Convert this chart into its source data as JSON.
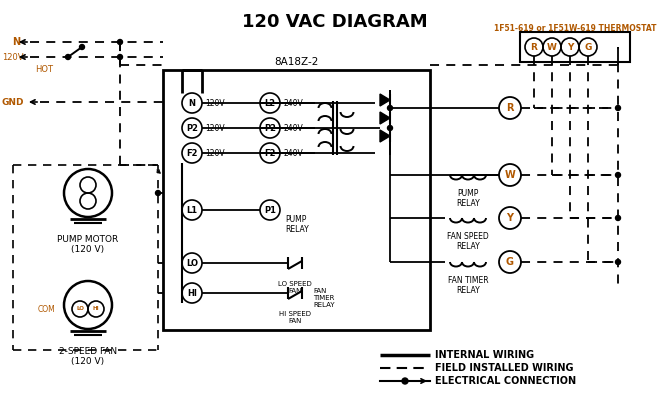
{
  "title": "120 VAC DIAGRAM",
  "bg_color": "#ffffff",
  "orange": "#b05800",
  "black": "#000000",
  "thermostat_label": "1F51-619 or 1F51W-619 THERMOSTAT",
  "thermostat_terminals": [
    "R",
    "W",
    "Y",
    "G"
  ],
  "control_box_label": "8A18Z-2",
  "motor_label": "PUMP MOTOR\n(120 V)",
  "fan_label": "2-SPEED FAN\n(120 V)",
  "legend_items": [
    "INTERNAL WIRING",
    "FIELD INSTALLED WIRING",
    "ELECTRICAL CONNECTION"
  ],
  "figsize": [
    6.7,
    4.19
  ],
  "dpi": 100
}
